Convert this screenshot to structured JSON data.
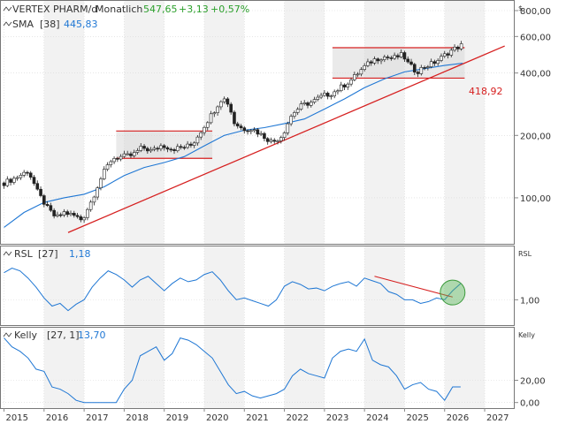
{
  "header": {
    "main": {
      "symbol": "VERTEX PHARM/d",
      "period": "Monatlich",
      "last": "547,65",
      "change": "+3,13",
      "change_pct": "+0,57%"
    },
    "sma": {
      "label": "SMA",
      "param": "[38]",
      "value": "445,83"
    },
    "rsl": {
      "label": "RSL",
      "param": "[27]",
      "value": "1,18"
    },
    "kelly": {
      "label": "Kelly",
      "param": "[27, 1]",
      "value": "13,70"
    }
  },
  "price_annotation": "418,92",
  "currency_label": "$",
  "panel_labels": {
    "rsl": "RSL",
    "kelly": "Kelly"
  },
  "colors": {
    "up": "#2ca02c",
    "sma": "#1f77d4",
    "trend": "#d62020",
    "indicator": "#1f77d4",
    "grid": "#d8d8d8",
    "highlight": "#5cb85c"
  },
  "chart_data": [
    {
      "type": "candlestick",
      "scale": "log",
      "ylim": [
        60,
        900
      ],
      "y_ticks": [
        {
          "value": 100,
          "label": "100,00"
        },
        {
          "value": 200,
          "label": "200,00"
        },
        {
          "value": 400,
          "label": "400,00"
        },
        {
          "value": 600,
          "label": "600,00"
        },
        {
          "value": 800,
          "label": "800,00"
        }
      ],
      "x_ticks": [
        {
          "value": 2015,
          "label": "2015"
        },
        {
          "value": 2016,
          "label": "2016"
        },
        {
          "value": 2017,
          "label": "2017"
        },
        {
          "value": 2018,
          "label": "2018"
        },
        {
          "value": 2019,
          "label": "2019"
        },
        {
          "value": 2020,
          "label": "2020"
        },
        {
          "value": 2021,
          "label": "2021"
        },
        {
          "value": 2022,
          "label": "2022"
        },
        {
          "value": 2023,
          "label": "2023"
        },
        {
          "value": 2024,
          "label": "2024"
        },
        {
          "value": 2025,
          "label": "2025"
        },
        {
          "value": 2026,
          "label": "2026"
        },
        {
          "value": 2027,
          "label": "2027"
        }
      ],
      "xlim": [
        2014.9,
        2027.75
      ],
      "price_path": [
        [
          2015.0,
          118
        ],
        [
          2015.3,
          125
        ],
        [
          2015.6,
          135
        ],
        [
          2015.85,
          105
        ],
        [
          2016.1,
          88
        ],
        [
          2016.3,
          80
        ],
        [
          2016.5,
          85
        ],
        [
          2016.75,
          82
        ],
        [
          2016.95,
          78
        ],
        [
          2017.2,
          98
        ],
        [
          2017.45,
          128
        ],
        [
          2017.7,
          155
        ],
        [
          2017.95,
          158
        ],
        [
          2018.2,
          160
        ],
        [
          2018.45,
          175
        ],
        [
          2018.7,
          168
        ],
        [
          2018.95,
          180
        ],
        [
          2019.2,
          172
        ],
        [
          2019.45,
          175
        ],
        [
          2019.7,
          180
        ],
        [
          2019.95,
          215
        ],
        [
          2020.2,
          255
        ],
        [
          2020.45,
          305
        ],
        [
          2020.6,
          285
        ],
        [
          2020.75,
          230
        ],
        [
          2020.95,
          215
        ],
        [
          2021.2,
          215
        ],
        [
          2021.45,
          200
        ],
        [
          2021.7,
          185
        ],
        [
          2021.95,
          200
        ],
        [
          2022.2,
          255
        ],
        [
          2022.45,
          280
        ],
        [
          2022.7,
          290
        ],
        [
          2022.95,
          310
        ],
        [
          2023.2,
          320
        ],
        [
          2023.45,
          345
        ],
        [
          2023.7,
          375
        ],
        [
          2023.95,
          420
        ],
        [
          2024.2,
          460
        ],
        [
          2024.45,
          480
        ],
        [
          2024.7,
          470
        ],
        [
          2024.95,
          490
        ],
        [
          2025.1,
          440
        ],
        [
          2025.3,
          405
        ],
        [
          2025.5,
          430
        ],
        [
          2025.7,
          445
        ],
        [
          2025.9,
          470
        ],
        [
          2026.1,
          505
        ],
        [
          2026.3,
          530
        ],
        [
          2026.45,
          548
        ]
      ],
      "sma_path": [
        [
          2015.0,
          72
        ],
        [
          2015.5,
          85
        ],
        [
          2016.0,
          95
        ],
        [
          2016.5,
          100
        ],
        [
          2017.0,
          104
        ],
        [
          2017.5,
          113
        ],
        [
          2018.0,
          128
        ],
        [
          2018.5,
          140
        ],
        [
          2019.0,
          148
        ],
        [
          2019.5,
          158
        ],
        [
          2020.0,
          178
        ],
        [
          2020.5,
          200
        ],
        [
          2021.0,
          212
        ],
        [
          2021.5,
          218
        ],
        [
          2022.0,
          228
        ],
        [
          2022.5,
          240
        ],
        [
          2023.0,
          268
        ],
        [
          2023.5,
          300
        ],
        [
          2024.0,
          340
        ],
        [
          2024.5,
          375
        ],
        [
          2025.0,
          405
        ],
        [
          2025.5,
          420
        ],
        [
          2026.0,
          435
        ],
        [
          2026.45,
          446
        ]
      ],
      "trendline": [
        [
          2016.6,
          68
        ],
        [
          2027.5,
          540
        ]
      ],
      "ranges": [
        {
          "x": [
            2017.8,
            2020.2
          ],
          "y": [
            155,
            210
          ]
        },
        {
          "x": [
            2023.2,
            2026.5
          ],
          "y": [
            378,
            530
          ]
        }
      ]
    },
    {
      "type": "line",
      "name": "RSL",
      "ylim": [
        0.72,
        1.6
      ],
      "y_ticks": [
        {
          "value": 1.0,
          "label": "1,00"
        }
      ],
      "x": [
        2015.0,
        2015.2,
        2015.4,
        2015.6,
        2015.8,
        2016.0,
        2016.2,
        2016.4,
        2016.6,
        2016.8,
        2017.0,
        2017.2,
        2017.4,
        2017.6,
        2017.8,
        2018.0,
        2018.2,
        2018.4,
        2018.6,
        2018.8,
        2019.0,
        2019.2,
        2019.4,
        2019.6,
        2019.8,
        2020.0,
        2020.2,
        2020.4,
        2020.6,
        2020.8,
        2021.0,
        2021.2,
        2021.4,
        2021.6,
        2021.8,
        2022.0,
        2022.2,
        2022.4,
        2022.6,
        2022.8,
        2023.0,
        2023.2,
        2023.4,
        2023.6,
        2023.8,
        2024.0,
        2024.2,
        2024.4,
        2024.6,
        2024.8,
        2025.0,
        2025.2,
        2025.4,
        2025.6,
        2025.8,
        2026.0,
        2026.2,
        2026.4
      ],
      "values": [
        1.3,
        1.35,
        1.32,
        1.24,
        1.14,
        1.02,
        0.93,
        0.96,
        0.88,
        0.95,
        1.0,
        1.14,
        1.24,
        1.32,
        1.28,
        1.22,
        1.14,
        1.22,
        1.26,
        1.18,
        1.1,
        1.18,
        1.24,
        1.2,
        1.22,
        1.28,
        1.31,
        1.22,
        1.1,
        1.0,
        1.02,
        0.99,
        0.96,
        0.93,
        1.0,
        1.15,
        1.2,
        1.17,
        1.12,
        1.13,
        1.1,
        1.15,
        1.18,
        1.2,
        1.15,
        1.24,
        1.21,
        1.18,
        1.09,
        1.06,
        1.0,
        1.0,
        0.96,
        0.98,
        1.02,
        1.0,
        1.1,
        1.18
      ],
      "trendline": [
        [
          2024.25,
          1.26
        ],
        [
          2026.2,
          1.03
        ]
      ],
      "highlight": {
        "x": 2026.2,
        "y": 1.08
      }
    },
    {
      "type": "line",
      "name": "Kelly",
      "ylim": [
        -5,
        68
      ],
      "y_ticks": [
        {
          "value": 0,
          "label": "0,00"
        },
        {
          "value": 20,
          "label": "20,00"
        }
      ],
      "x": [
        2015.0,
        2015.2,
        2015.4,
        2015.6,
        2015.8,
        2016.0,
        2016.2,
        2016.4,
        2016.6,
        2016.8,
        2017.0,
        2017.2,
        2017.4,
        2017.6,
        2017.8,
        2018.0,
        2018.2,
        2018.4,
        2018.6,
        2018.8,
        2019.0,
        2019.2,
        2019.4,
        2019.6,
        2019.8,
        2020.0,
        2020.2,
        2020.4,
        2020.6,
        2020.8,
        2021.0,
        2021.2,
        2021.4,
        2021.6,
        2021.8,
        2022.0,
        2022.2,
        2022.4,
        2022.6,
        2022.8,
        2023.0,
        2023.2,
        2023.4,
        2023.6,
        2023.8,
        2024.0,
        2024.2,
        2024.4,
        2024.6,
        2024.8,
        2025.0,
        2025.2,
        2025.4,
        2025.6,
        2025.8,
        2026.0,
        2026.2,
        2026.4
      ],
      "values": [
        58,
        50,
        46,
        40,
        30,
        28,
        14,
        12,
        8,
        2,
        0,
        0,
        0,
        0,
        0,
        12,
        20,
        42,
        46,
        50,
        38,
        44,
        58,
        56,
        52,
        46,
        40,
        28,
        16,
        8,
        10,
        6,
        4,
        6,
        8,
        12,
        24,
        30,
        26,
        24,
        22,
        40,
        46,
        48,
        46,
        57,
        38,
        34,
        32,
        24,
        12,
        16,
        18,
        12,
        10,
        2,
        14,
        14
      ]
    }
  ]
}
